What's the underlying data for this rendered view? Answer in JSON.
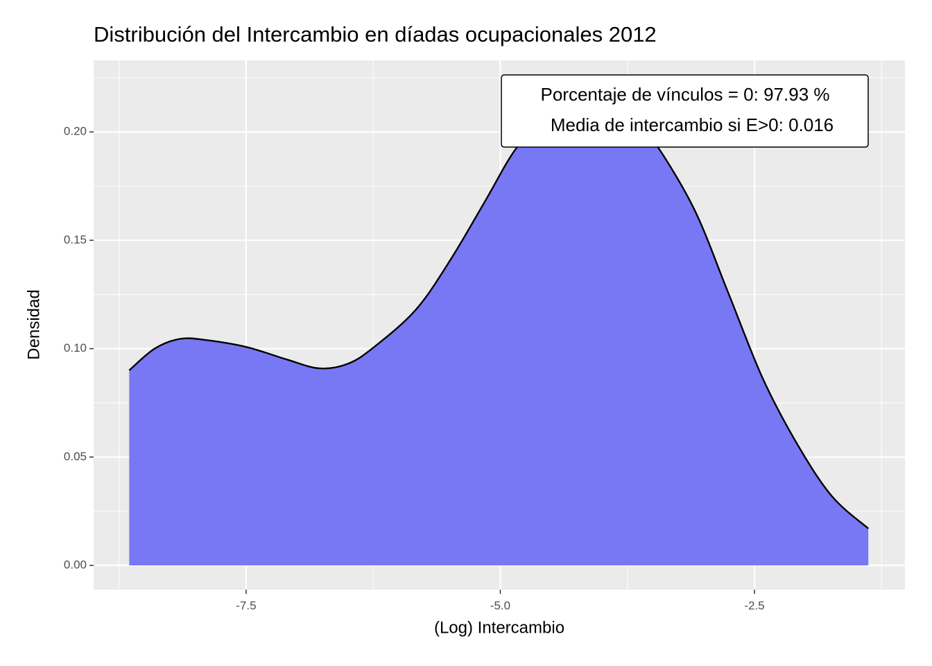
{
  "chart_data": {
    "type": "area",
    "title": "Distribución del Intercambio en díadas ocupacionales 2012",
    "x_label": "(Log) Intercambio",
    "y_label": "Densidad",
    "annotations": [
      "Porcentaje de vínculos = 0: 97.93 %",
      "Media de intercambio si E>0: 0.016"
    ],
    "x": [
      -8.65,
      -8.4,
      -8.15,
      -7.9,
      -7.5,
      -7.1,
      -6.78,
      -6.5,
      -6.24,
      -5.83,
      -5.49,
      -5.15,
      -4.85,
      -4.55,
      -4.26,
      -3.95,
      -3.7,
      -3.51,
      -3.1,
      -2.76,
      -2.42,
      -2.08,
      -1.74,
      -1.38
    ],
    "values": [
      0.09,
      0.1,
      0.1045,
      0.104,
      0.1008,
      0.095,
      0.0909,
      0.093,
      0.1008,
      0.118,
      0.141,
      0.168,
      0.192,
      0.207,
      0.213,
      0.211,
      0.204,
      0.197,
      0.165,
      0.126,
      0.0864,
      0.056,
      0.032,
      0.017
    ],
    "color": "#7474f4",
    "xlim": [
      -9.0,
      -1.02
    ],
    "ylim": [
      -0.0112,
      0.233
    ],
    "xticks": [
      -7.5,
      {
        "value": -5.0,
        "label": "-5.0"
      },
      -2.5
    ],
    "yticks": [
      {
        "value": 0,
        "label": "0.00"
      },
      0.05,
      {
        "value": 0.1,
        "label": "0.10"
      },
      0.15,
      {
        "value": 0.2,
        "label": "0.20"
      }
    ],
    "grid": true
  }
}
